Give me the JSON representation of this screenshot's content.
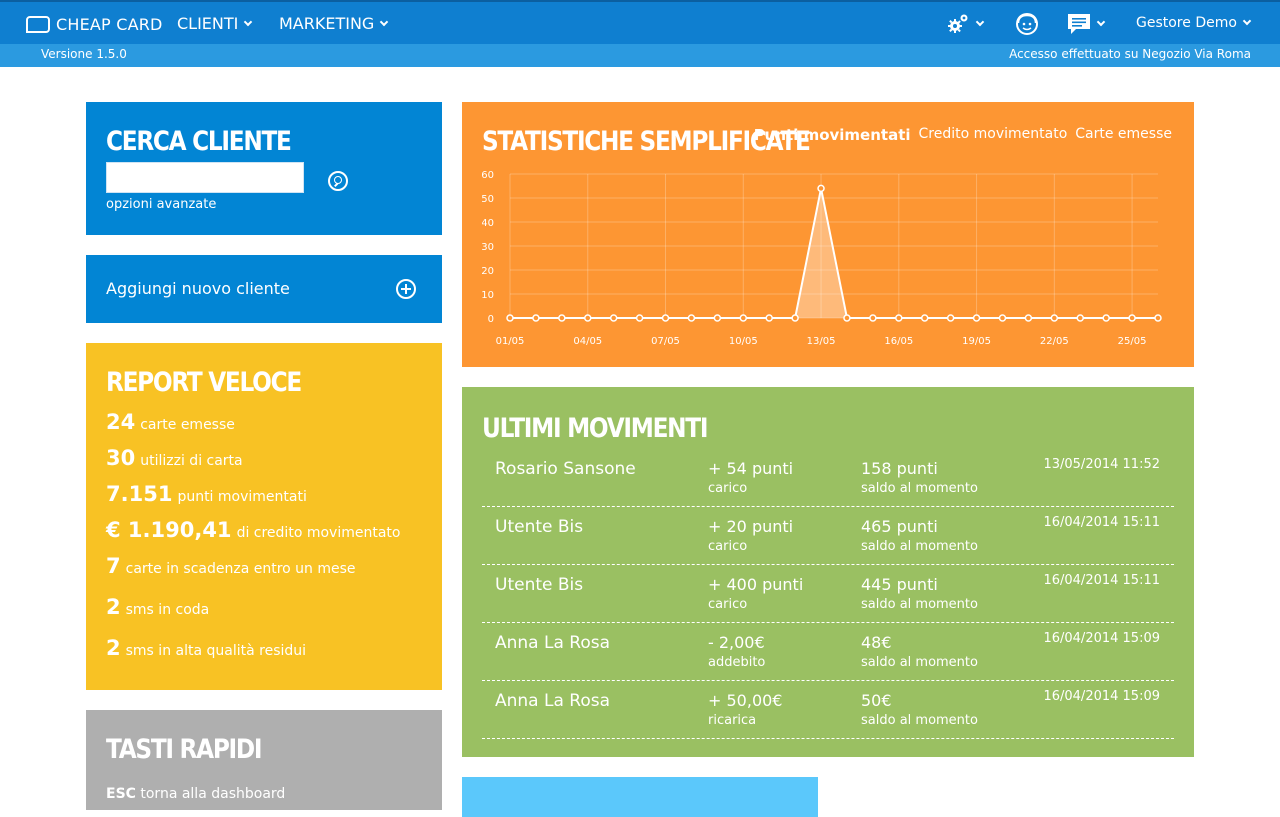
{
  "topbar": {
    "brand": "CHEAP CARD",
    "nav": [
      {
        "label": "CLIENTI"
      },
      {
        "label": "MARKETING"
      }
    ],
    "icons": {
      "settings": "gears-icon",
      "support": "support-face-icon",
      "messages": "speech-bubble-icon"
    },
    "user": "Gestore Demo"
  },
  "subbar": {
    "version": "Versione 1.5.0",
    "access": "Accesso effettuato su Negozio Via Roma"
  },
  "cerca": {
    "title": "CERCA CLIENTE",
    "input_value": "",
    "advanced": "opzioni avanzate"
  },
  "aggiungi": {
    "label": "Aggiungi nuovo cliente"
  },
  "report": {
    "title": "REPORT VELOCE",
    "lines": [
      {
        "num": "24",
        "text": "carte emesse"
      },
      {
        "num": "30",
        "text": "utilizzi di carta"
      },
      {
        "num": "7.151",
        "text": "punti movimentati"
      },
      {
        "num": "€ 1.190,41",
        "text": "di credito movimentato"
      },
      {
        "num": "7",
        "text": "carte in scadenza entro un mese"
      },
      {
        "num": "2",
        "text": "sms in coda"
      },
      {
        "num": "2",
        "text": "sms in alta qualità residui"
      }
    ]
  },
  "tasti": {
    "title": "TASTI RAPIDI",
    "key": "ESC",
    "desc": "torna alla dashboard"
  },
  "stat": {
    "title": "STATISTICHE SEMPLIFICATE",
    "tabs": [
      "Punti movimentati",
      "Credito movimentato",
      "Carte emesse"
    ],
    "active_tab": 0
  },
  "chart_data": {
    "type": "area",
    "title": "",
    "x": [
      "01/05",
      "02/05",
      "03/05",
      "04/05",
      "05/05",
      "06/05",
      "07/05",
      "08/05",
      "09/05",
      "10/05",
      "11/05",
      "12/05",
      "13/05",
      "14/05",
      "15/05",
      "16/05",
      "17/05",
      "18/05",
      "19/05",
      "20/05",
      "21/05",
      "22/05",
      "23/05",
      "24/05",
      "25/05",
      "26/05"
    ],
    "x_tick_labels": [
      "01/05",
      "04/05",
      "07/05",
      "10/05",
      "13/05",
      "16/05",
      "19/05",
      "22/05",
      "25/05"
    ],
    "series": [
      {
        "values": [
          0,
          0,
          0,
          0,
          0,
          0,
          0,
          0,
          0,
          0,
          0,
          0,
          54,
          0,
          0,
          0,
          0,
          0,
          0,
          0,
          0,
          0,
          0,
          0,
          0,
          0
        ]
      }
    ],
    "ylim": [
      0,
      60
    ],
    "y_ticks": [
      0,
      10,
      20,
      30,
      40,
      50,
      60
    ],
    "grid": true
  },
  "movimenti": {
    "title": "ULTIMI MOVIMENTI",
    "rows": [
      {
        "name": "Rosario Sansone",
        "value": "+ 54 punti",
        "type": "carico",
        "saldo": "158 punti",
        "saldo_label": "saldo al momento",
        "date": "13/05/2014 11:52"
      },
      {
        "name": "Utente Bis",
        "value": "+ 20 punti",
        "type": "carico",
        "saldo": "465 punti",
        "saldo_label": "saldo al momento",
        "date": "16/04/2014 15:11"
      },
      {
        "name": "Utente Bis",
        "value": "+ 400 punti",
        "type": "carico",
        "saldo": "445 punti",
        "saldo_label": "saldo al momento",
        "date": "16/04/2014 15:11"
      },
      {
        "name": "Anna La Rosa",
        "value": "- 2,00€",
        "type": "addebito",
        "saldo": "48€",
        "saldo_label": "saldo al momento",
        "date": "16/04/2014 15:09"
      },
      {
        "name": "Anna La Rosa",
        "value": "+ 50,00€",
        "type": "ricarica",
        "saldo": "50€",
        "saldo_label": "saldo al momento",
        "date": "16/04/2014 15:09"
      }
    ]
  },
  "colors": {
    "topbar": "#0f7fd0",
    "subbar": "#2b9ae0",
    "blue_panel": "#0285d4",
    "yellow_panel": "#f8c224",
    "grey_panel": "#afafaf",
    "orange_panel": "#fd9633",
    "green_panel": "#9ac062",
    "lightblue_panel": "#5bc8fb"
  }
}
